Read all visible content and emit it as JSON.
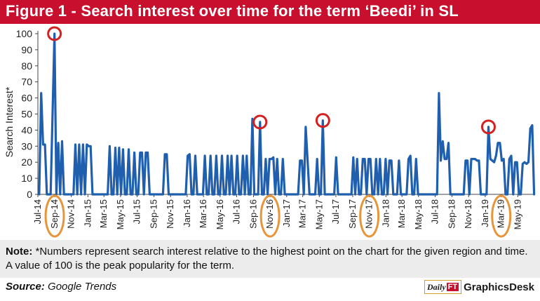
{
  "header": {
    "title": "Figure 1 - Search interest over time for the term ‘Beedi’ in SL"
  },
  "note": {
    "label": "Note:",
    "text": " *Numbers represent search interest relative to the highest point on the chart for the given region and time. A value of 100 is the peak popularity for the term."
  },
  "source": {
    "label": "Source:",
    "value": "Google Trends"
  },
  "branding": {
    "logo_a": "Daily",
    "logo_b": "FT",
    "name": "GraphicsDesk"
  },
  "colors": {
    "title_bar": "#c8102e",
    "line": "#1f5fae",
    "peak_circle": "#d42020",
    "period_ellipse": "#e8953a",
    "note_bar": "#ececec"
  },
  "chart_data": {
    "type": "line",
    "title": "",
    "xlabel": "",
    "ylabel": "Search Interest*",
    "ylim": [
      0,
      100
    ],
    "y_ticks": [
      0,
      10,
      20,
      30,
      40,
      50,
      60,
      70,
      80,
      90,
      100
    ],
    "grid": "none",
    "x_start": "2014-07",
    "x_end": "2019-07",
    "x_tick_labels": [
      "Jul-14",
      "Sep-14",
      "Nov-14",
      "Jan-15",
      "Mar-15",
      "May-15",
      "Jul-15",
      "Sep-15",
      "Nov-15",
      "Jan-16",
      "Mar-16",
      "May-16",
      "Jul-16",
      "Sep-16",
      "Nov-16",
      "Jan-17",
      "Mar-17",
      "May-17",
      "Jul-17",
      "Sep-17",
      "Nov-17",
      "Jan-18",
      "Mar-18",
      "May-18",
      "Jul-18",
      "Sep-18",
      "Nov-18",
      "Jan-19",
      "Mar-19",
      "May-19"
    ],
    "highlighted_peaks": [
      {
        "x": "2014-08-31",
        "y": 100
      },
      {
        "x": "2016-09-25",
        "y": 45
      },
      {
        "x": "2017-05-14",
        "y": 46
      },
      {
        "x": "2019-01-13",
        "y": 42
      }
    ],
    "highlighted_labels": [
      "Sep-14",
      "Nov-16",
      "Nov-17",
      "Mar-19"
    ],
    "series": [
      {
        "values": [
          [
            "2014-07-06",
            0
          ],
          [
            "2014-07-13",
            63
          ],
          [
            "2014-07-20",
            31
          ],
          [
            "2014-07-27",
            31
          ],
          [
            "2014-08-03",
            0
          ],
          [
            "2014-08-10",
            0
          ],
          [
            "2014-08-17",
            0
          ],
          [
            "2014-08-31",
            100
          ],
          [
            "2014-09-07",
            0
          ],
          [
            "2014-09-14",
            32
          ],
          [
            "2014-09-21",
            0
          ],
          [
            "2014-09-28",
            33
          ],
          [
            "2014-10-05",
            0
          ],
          [
            "2014-10-12",
            0
          ],
          [
            "2014-10-19",
            0
          ],
          [
            "2014-10-26",
            0
          ],
          [
            "2014-11-02",
            0
          ],
          [
            "2014-11-09",
            0
          ],
          [
            "2014-11-16",
            31
          ],
          [
            "2014-11-23",
            0
          ],
          [
            "2014-11-30",
            31
          ],
          [
            "2014-12-07",
            0
          ],
          [
            "2014-12-14",
            31
          ],
          [
            "2014-12-21",
            0
          ],
          [
            "2014-12-28",
            31
          ],
          [
            "2015-01-04",
            30
          ],
          [
            "2015-01-11",
            30
          ],
          [
            "2015-01-18",
            0
          ],
          [
            "2015-01-25",
            0
          ],
          [
            "2015-02-01",
            0
          ],
          [
            "2015-02-08",
            0
          ],
          [
            "2015-02-15",
            0
          ],
          [
            "2015-02-22",
            0
          ],
          [
            "2015-03-01",
            0
          ],
          [
            "2015-03-08",
            0
          ],
          [
            "2015-03-15",
            0
          ],
          [
            "2015-03-22",
            30
          ],
          [
            "2015-03-29",
            0
          ],
          [
            "2015-04-05",
            0
          ],
          [
            "2015-04-12",
            29
          ],
          [
            "2015-04-19",
            0
          ],
          [
            "2015-04-26",
            29
          ],
          [
            "2015-05-03",
            0
          ],
          [
            "2015-05-10",
            28
          ],
          [
            "2015-05-17",
            0
          ],
          [
            "2015-05-24",
            0
          ],
          [
            "2015-05-31",
            28
          ],
          [
            "2015-06-07",
            0
          ],
          [
            "2015-06-14",
            0
          ],
          [
            "2015-06-21",
            26
          ],
          [
            "2015-06-28",
            0
          ],
          [
            "2015-07-05",
            0
          ],
          [
            "2015-07-12",
            26
          ],
          [
            "2015-07-19",
            26
          ],
          [
            "2015-07-26",
            0
          ],
          [
            "2015-08-02",
            26
          ],
          [
            "2015-08-09",
            26
          ],
          [
            "2015-08-16",
            0
          ],
          [
            "2015-08-23",
            0
          ],
          [
            "2015-08-30",
            0
          ],
          [
            "2015-09-06",
            0
          ],
          [
            "2015-09-13",
            0
          ],
          [
            "2015-09-20",
            0
          ],
          [
            "2015-09-27",
            0
          ],
          [
            "2015-10-04",
            0
          ],
          [
            "2015-10-11",
            25
          ],
          [
            "2015-10-18",
            25
          ],
          [
            "2015-10-25",
            0
          ],
          [
            "2015-11-01",
            0
          ],
          [
            "2015-11-08",
            0
          ],
          [
            "2015-11-15",
            0
          ],
          [
            "2015-11-22",
            0
          ],
          [
            "2015-11-29",
            0
          ],
          [
            "2015-12-06",
            0
          ],
          [
            "2015-12-13",
            0
          ],
          [
            "2015-12-20",
            0
          ],
          [
            "2015-12-27",
            0
          ],
          [
            "2016-01-03",
            24
          ],
          [
            "2016-01-10",
            25
          ],
          [
            "2016-01-17",
            0
          ],
          [
            "2016-01-24",
            0
          ],
          [
            "2016-01-31",
            24
          ],
          [
            "2016-02-07",
            0
          ],
          [
            "2016-02-14",
            0
          ],
          [
            "2016-02-21",
            0
          ],
          [
            "2016-02-28",
            0
          ],
          [
            "2016-03-06",
            24
          ],
          [
            "2016-03-13",
            0
          ],
          [
            "2016-03-20",
            0
          ],
          [
            "2016-03-27",
            24
          ],
          [
            "2016-04-03",
            0
          ],
          [
            "2016-04-10",
            0
          ],
          [
            "2016-04-17",
            24
          ],
          [
            "2016-04-24",
            0
          ],
          [
            "2016-05-01",
            0
          ],
          [
            "2016-05-08",
            24
          ],
          [
            "2016-05-15",
            0
          ],
          [
            "2016-05-22",
            0
          ],
          [
            "2016-05-29",
            24
          ],
          [
            "2016-06-05",
            0
          ],
          [
            "2016-06-12",
            24
          ],
          [
            "2016-06-19",
            0
          ],
          [
            "2016-06-26",
            0
          ],
          [
            "2016-07-03",
            24
          ],
          [
            "2016-07-10",
            0
          ],
          [
            "2016-07-17",
            0
          ],
          [
            "2016-07-24",
            24
          ],
          [
            "2016-07-31",
            0
          ],
          [
            "2016-08-07",
            24
          ],
          [
            "2016-08-14",
            0
          ],
          [
            "2016-08-21",
            0
          ],
          [
            "2016-08-28",
            47
          ],
          [
            "2016-09-04",
            0
          ],
          [
            "2016-09-11",
            0
          ],
          [
            "2016-09-18",
            0
          ],
          [
            "2016-09-25",
            45
          ],
          [
            "2016-10-02",
            0
          ],
          [
            "2016-10-09",
            0
          ],
          [
            "2016-10-16",
            22
          ],
          [
            "2016-10-23",
            0
          ],
          [
            "2016-10-30",
            22
          ],
          [
            "2016-11-06",
            22
          ],
          [
            "2016-11-13",
            23
          ],
          [
            "2016-11-20",
            0
          ],
          [
            "2016-11-27",
            22
          ],
          [
            "2016-12-04",
            0
          ],
          [
            "2016-12-11",
            0
          ],
          [
            "2016-12-18",
            22
          ],
          [
            "2016-12-25",
            0
          ],
          [
            "2017-01-01",
            0
          ],
          [
            "2017-01-08",
            0
          ],
          [
            "2017-01-15",
            0
          ],
          [
            "2017-01-22",
            0
          ],
          [
            "2017-01-29",
            0
          ],
          [
            "2017-02-05",
            0
          ],
          [
            "2017-02-12",
            0
          ],
          [
            "2017-02-19",
            21
          ],
          [
            "2017-02-26",
            21
          ],
          [
            "2017-03-05",
            0
          ],
          [
            "2017-03-12",
            42
          ],
          [
            "2017-03-19",
            21
          ],
          [
            "2017-03-26",
            0
          ],
          [
            "2017-04-02",
            0
          ],
          [
            "2017-04-09",
            0
          ],
          [
            "2017-04-16",
            0
          ],
          [
            "2017-04-23",
            22
          ],
          [
            "2017-04-30",
            0
          ],
          [
            "2017-05-07",
            0
          ],
          [
            "2017-05-14",
            46
          ],
          [
            "2017-05-21",
            0
          ],
          [
            "2017-05-28",
            0
          ],
          [
            "2017-06-04",
            0
          ],
          [
            "2017-06-11",
            0
          ],
          [
            "2017-06-18",
            0
          ],
          [
            "2017-06-25",
            0
          ],
          [
            "2017-07-02",
            23
          ],
          [
            "2017-07-09",
            0
          ],
          [
            "2017-07-16",
            0
          ],
          [
            "2017-07-23",
            0
          ],
          [
            "2017-07-30",
            0
          ],
          [
            "2017-08-06",
            0
          ],
          [
            "2017-08-13",
            0
          ],
          [
            "2017-08-20",
            0
          ],
          [
            "2017-08-27",
            0
          ],
          [
            "2017-09-03",
            23
          ],
          [
            "2017-09-10",
            0
          ],
          [
            "2017-09-17",
            22
          ],
          [
            "2017-09-24",
            0
          ],
          [
            "2017-10-01",
            0
          ],
          [
            "2017-10-08",
            22
          ],
          [
            "2017-10-15",
            22
          ],
          [
            "2017-10-22",
            0
          ],
          [
            "2017-10-29",
            22
          ],
          [
            "2017-11-05",
            22
          ],
          [
            "2017-11-12",
            0
          ],
          [
            "2017-11-19",
            0
          ],
          [
            "2017-11-26",
            22
          ],
          [
            "2017-12-03",
            0
          ],
          [
            "2017-12-10",
            22
          ],
          [
            "2017-12-17",
            0
          ],
          [
            "2017-12-24",
            0
          ],
          [
            "2017-12-31",
            22
          ],
          [
            "2018-01-07",
            0
          ],
          [
            "2018-01-14",
            21
          ],
          [
            "2018-01-21",
            21
          ],
          [
            "2018-01-28",
            0
          ],
          [
            "2018-02-04",
            0
          ],
          [
            "2018-02-11",
            0
          ],
          [
            "2018-02-18",
            21
          ],
          [
            "2018-02-25",
            0
          ],
          [
            "2018-03-04",
            0
          ],
          [
            "2018-03-11",
            0
          ],
          [
            "2018-03-18",
            0
          ],
          [
            "2018-03-25",
            22
          ],
          [
            "2018-04-01",
            24
          ],
          [
            "2018-04-08",
            0
          ],
          [
            "2018-04-15",
            0
          ],
          [
            "2018-04-22",
            22
          ],
          [
            "2018-04-29",
            0
          ],
          [
            "2018-05-06",
            0
          ],
          [
            "2018-05-13",
            0
          ],
          [
            "2018-05-20",
            0
          ],
          [
            "2018-05-27",
            0
          ],
          [
            "2018-06-03",
            0
          ],
          [
            "2018-06-10",
            0
          ],
          [
            "2018-06-17",
            0
          ],
          [
            "2018-06-24",
            0
          ],
          [
            "2018-07-01",
            0
          ],
          [
            "2018-07-08",
            0
          ],
          [
            "2018-07-15",
            63
          ],
          [
            "2018-07-22",
            21
          ],
          [
            "2018-07-29",
            33
          ],
          [
            "2018-08-05",
            22
          ],
          [
            "2018-08-12",
            22
          ],
          [
            "2018-08-19",
            32
          ],
          [
            "2018-08-26",
            0
          ],
          [
            "2018-09-02",
            0
          ],
          [
            "2018-09-09",
            0
          ],
          [
            "2018-09-16",
            0
          ],
          [
            "2018-09-23",
            0
          ],
          [
            "2018-09-30",
            0
          ],
          [
            "2018-10-07",
            0
          ],
          [
            "2018-10-14",
            0
          ],
          [
            "2018-10-21",
            21
          ],
          [
            "2018-10-28",
            21
          ],
          [
            "2018-11-04",
            0
          ],
          [
            "2018-11-11",
            22
          ],
          [
            "2018-11-18",
            22
          ],
          [
            "2018-11-25",
            22
          ],
          [
            "2018-12-02",
            21
          ],
          [
            "2018-12-09",
            21
          ],
          [
            "2018-12-16",
            0
          ],
          [
            "2018-12-23",
            0
          ],
          [
            "2018-12-30",
            0
          ],
          [
            "2019-01-06",
            0
          ],
          [
            "2019-01-13",
            42
          ],
          [
            "2019-01-20",
            22
          ],
          [
            "2019-01-27",
            21
          ],
          [
            "2019-02-03",
            20
          ],
          [
            "2019-02-10",
            24
          ],
          [
            "2019-02-17",
            32
          ],
          [
            "2019-02-24",
            32
          ],
          [
            "2019-03-03",
            21
          ],
          [
            "2019-03-10",
            22
          ],
          [
            "2019-03-17",
            0
          ],
          [
            "2019-03-24",
            0
          ],
          [
            "2019-03-31",
            22
          ],
          [
            "2019-04-07",
            24
          ],
          [
            "2019-04-14",
            0
          ],
          [
            "2019-04-21",
            20
          ],
          [
            "2019-04-28",
            20
          ],
          [
            "2019-05-05",
            0
          ],
          [
            "2019-05-12",
            0
          ],
          [
            "2019-05-19",
            19
          ],
          [
            "2019-05-26",
            20
          ],
          [
            "2019-06-02",
            19
          ],
          [
            "2019-06-09",
            20
          ],
          [
            "2019-06-16",
            41
          ],
          [
            "2019-06-23",
            43
          ],
          [
            "2019-06-30",
            0
          ]
        ]
      }
    ]
  }
}
